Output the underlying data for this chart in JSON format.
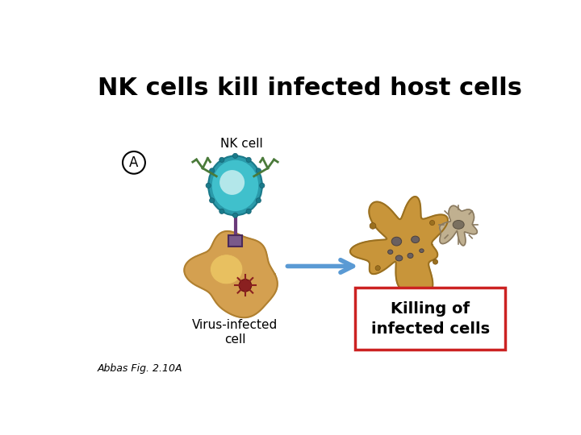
{
  "title": "NK cells kill infected host cells",
  "title_fontsize": 22,
  "title_fontweight": "bold",
  "bg_color": "#ffffff",
  "caption": "Abbas Fig. 2.10A",
  "caption_fontsize": 9,
  "nk_cell_color_outer": "#2a9aaa",
  "nk_cell_color_inner": "#40c0cc",
  "nk_cell_nucleus": "#c8eef0",
  "nk_cell_dot": "#1a7a8a",
  "arm_color": "#4a7a3a",
  "connector_color": "#6a3a7a",
  "connector_box_color": "#7a5a8a",
  "infected_color": "#d4a050",
  "infected_edge": "#b08030",
  "infected_nuc_color": "#e8c060",
  "virus_color": "#8a2020",
  "arrow_color": "#5a9ad4",
  "dead_color": "#c8953a",
  "dead_edge": "#9a7020",
  "dead_dot_color": "#6a6060",
  "dead_dot_edge": "#4a4040",
  "small_dead_color": "#c0b090",
  "small_dead_edge": "#8a7a60",
  "small_dead_dot": "#7a7060",
  "box_border_color": "#cc2222",
  "box_text": "Killing of\ninfected cells"
}
